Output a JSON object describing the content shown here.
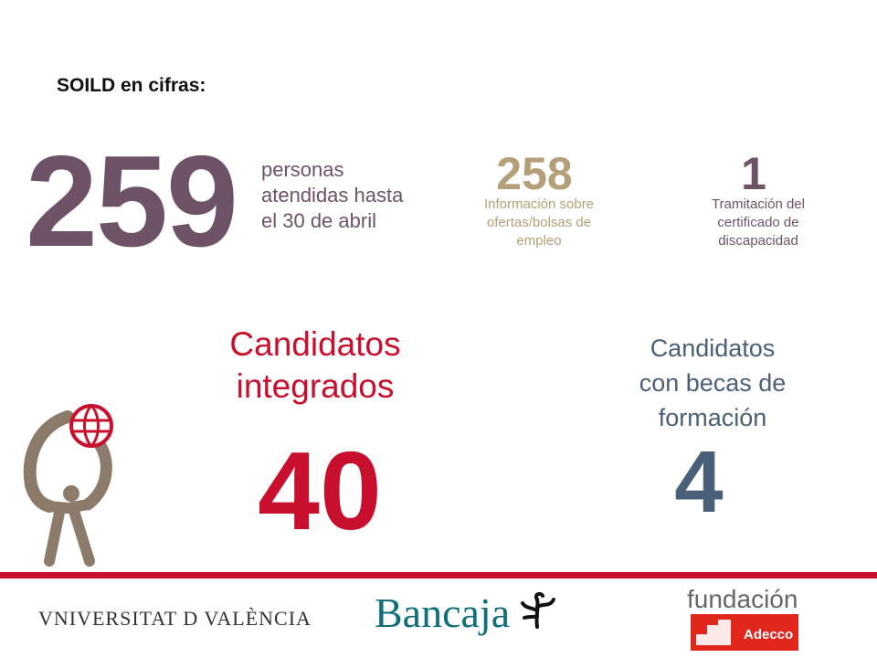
{
  "heading": "SOILD en cifras:",
  "stats": {
    "total": {
      "value": "259",
      "line1": "personas",
      "line2": "atendidas hasta",
      "line3": "el 30 de abril"
    },
    "info": {
      "value": "258",
      "line1": "Información sobre",
      "line2": "ofertas/bolsas de",
      "line3": "empleo"
    },
    "certificado": {
      "value": "1",
      "line1": "Tramitación del",
      "line2": "certificado de",
      "line3": "discapacidad"
    }
  },
  "integrados": {
    "line1": "Candidatos",
    "line2": "integrados",
    "value": "40"
  },
  "becas": {
    "line1": "Candidatos",
    "line2": "con becas de",
    "line3": "formación",
    "value": "4"
  },
  "footer": {
    "uv": "VNIVERSITAT D VALÈNCIA",
    "bancaja": "Bancaja",
    "fundacion": "fundación",
    "adecco": "Adecco"
  },
  "colors": {
    "purple": "#6e5368",
    "tan": "#b4a078",
    "red": "#c8102e",
    "slate": "#4a6078",
    "teal": "#0f6f7a"
  },
  "icons": [
    "figure-holding-globe-icon",
    "bancaja-tree-icon",
    "adecco-steps-icon"
  ]
}
